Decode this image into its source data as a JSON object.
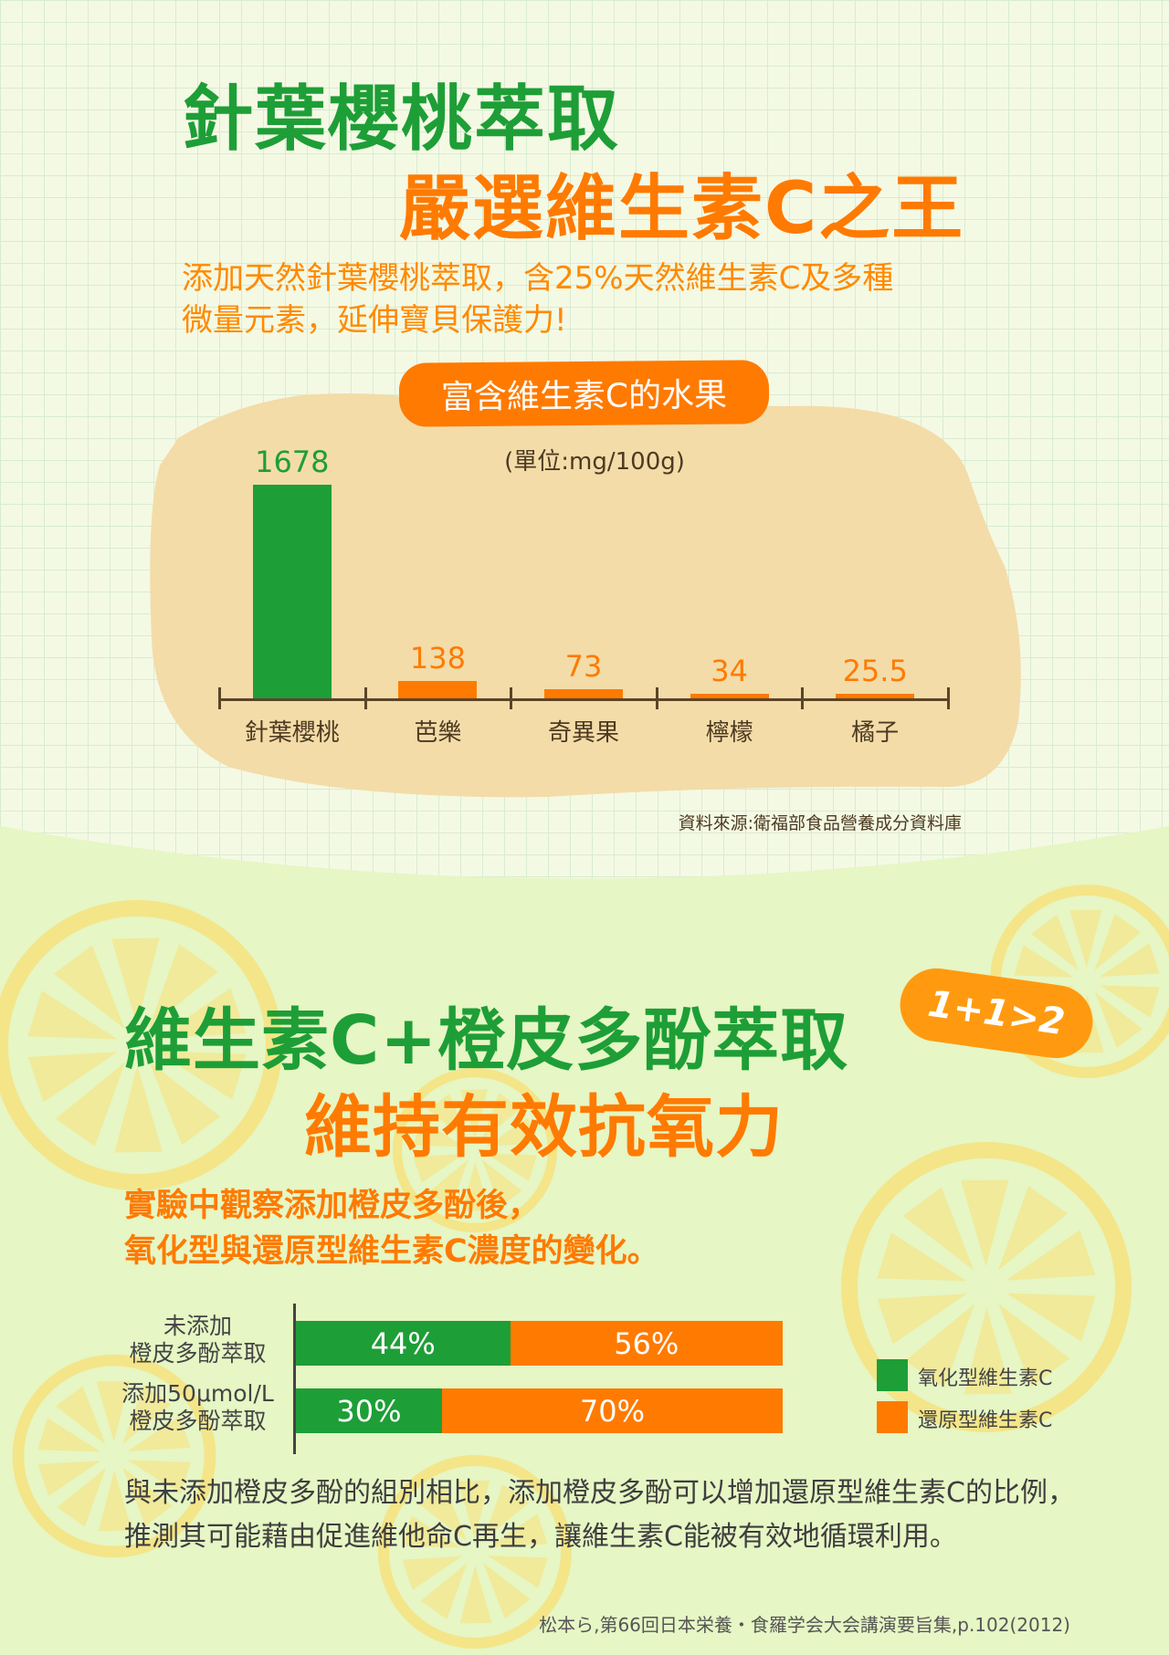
{
  "header": {
    "title_line1": "針葉櫻桃萃取",
    "title_line2": "嚴選維生素C之王",
    "subtitle_line1": "添加天然針葉櫻桃萃取，含25%天然維生素C及多種",
    "subtitle_line2": "微量元素，延伸寶貝保護力!"
  },
  "colors": {
    "green": "#1e9e37",
    "orange": "#ff7a00",
    "beige": "#f3dca8",
    "lemon": "#f6e27f"
  },
  "chart_data": [
    {
      "type": "bar",
      "title": "富含維生素C的水果",
      "ylabel": "(單位:mg/100g)",
      "categories": [
        "針葉櫻桃",
        "芭樂",
        "奇異果",
        "檸檬",
        "橘子"
      ],
      "values": [
        1678,
        138,
        73,
        34,
        25.5
      ],
      "value_labels": [
        "1678",
        "138",
        "73",
        "34",
        "25.5"
      ],
      "bar_colors": [
        "#1e9e37",
        "#ff7a00",
        "#ff7a00",
        "#ff7a00",
        "#ff7a00"
      ],
      "source": "資料來源:衛福部食品營養成分資料庫"
    },
    {
      "type": "bar",
      "orientation": "horizontal-stacked",
      "categories": [
        [
          "未添加",
          "橙皮多酚萃取"
        ],
        [
          "添加50μmol/L",
          "橙皮多酚萃取"
        ]
      ],
      "series": [
        {
          "name": "氧化型維生素C",
          "values": [
            44,
            30
          ],
          "labels": [
            "44%",
            "30%"
          ],
          "color": "#1e9e37"
        },
        {
          "name": "還原型維生素C",
          "values": [
            56,
            70
          ],
          "labels": [
            "56%",
            "70%"
          ],
          "color": "#ff7a00"
        }
      ],
      "legend": "right"
    }
  ],
  "section2": {
    "title_line1": "維生素C+橙皮多酚萃取",
    "title_line2": "維持有效抗氧力",
    "badge": "1+1>2",
    "sub_line1": "實驗中觀察添加橙皮多酚後，",
    "sub_line2": "氧化型與還原型維生素C濃度的變化。",
    "paragraph": "與未添加橙皮多酚的組別相比，添加橙皮多酚可以增加還原型維生素C的比例，推測其可能藉由促進維他命C再生，讓維生素C能被有效地循環利用。",
    "citation": "松本ら,第66回日本栄養・食羅学会大会講演要旨集,p.102(2012)"
  }
}
